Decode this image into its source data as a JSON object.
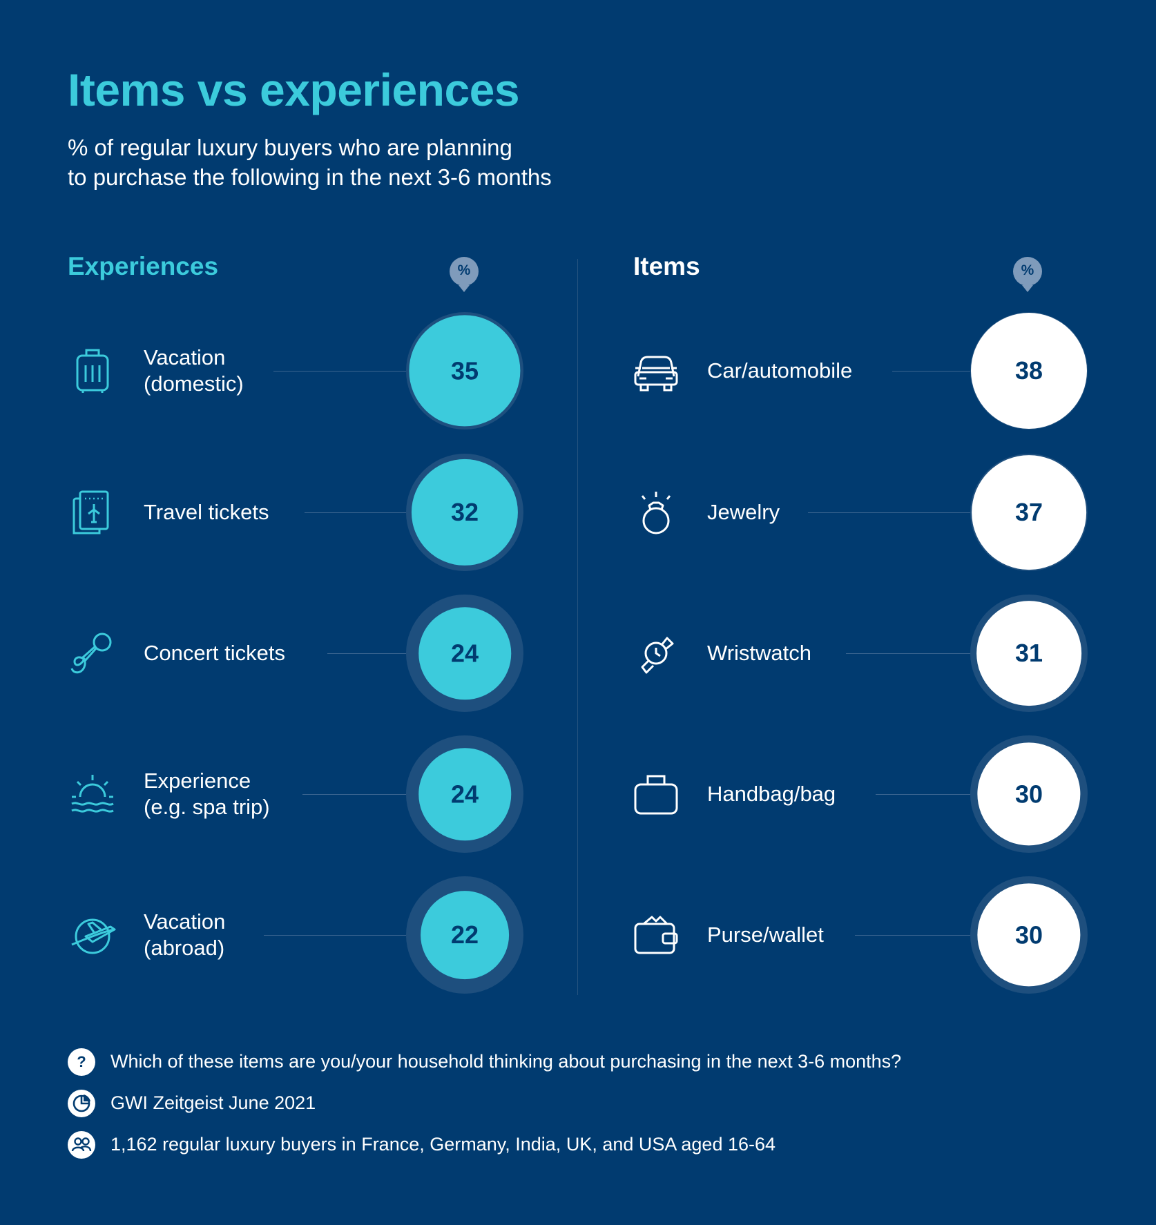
{
  "chart_data": {
    "type": "bubble-list",
    "title": "Items vs experiences",
    "subtitle_lines": [
      "% of regular luxury buyers who are planning",
      "to purchase the following in the next 3-6 months"
    ],
    "unit_badge": "%",
    "groups": [
      {
        "name": "Experiences",
        "color": "#3ccbdc",
        "rows": [
          {
            "label": [
              "Vacation",
              "(domestic)"
            ],
            "value": 35,
            "icon": "suitcase-icon"
          },
          {
            "label": [
              "Travel tickets"
            ],
            "value": 32,
            "icon": "ticket-icon"
          },
          {
            "label": [
              "Concert tickets"
            ],
            "value": 24,
            "icon": "microphone-icon"
          },
          {
            "label": [
              "Experience",
              "(e.g. spa trip)"
            ],
            "value": 24,
            "icon": "sunrise-icon"
          },
          {
            "label": [
              "Vacation",
              "(abroad)"
            ],
            "value": 22,
            "icon": "globe-plane-icon"
          }
        ]
      },
      {
        "name": "Items",
        "color": "#ffffff",
        "rows": [
          {
            "label": [
              "Car/automobile"
            ],
            "value": 38,
            "icon": "car-icon"
          },
          {
            "label": [
              "Jewelry"
            ],
            "value": 37,
            "icon": "ring-icon"
          },
          {
            "label": [
              "Wristwatch"
            ],
            "value": 31,
            "icon": "watch-icon"
          },
          {
            "label": [
              "Handbag/bag"
            ],
            "value": 30,
            "icon": "handbag-icon"
          },
          {
            "label": [
              "Purse/wallet"
            ],
            "value": 30,
            "icon": "wallet-icon"
          }
        ]
      }
    ]
  },
  "footer": {
    "question": "Which of these items are you/your household thinking about purchasing in the next 3-6 months?",
    "source": "GWI Zeitgeist June 2021",
    "sample": "1,162 regular luxury buyers in France, Germany, India, UK, and USA aged 16-64",
    "question_icon": "?"
  },
  "colors": {
    "background": "#013b70",
    "accent": "#3ccbdc",
    "ring": "#1e4f7e",
    "items_bubble": "#ffffff"
  }
}
